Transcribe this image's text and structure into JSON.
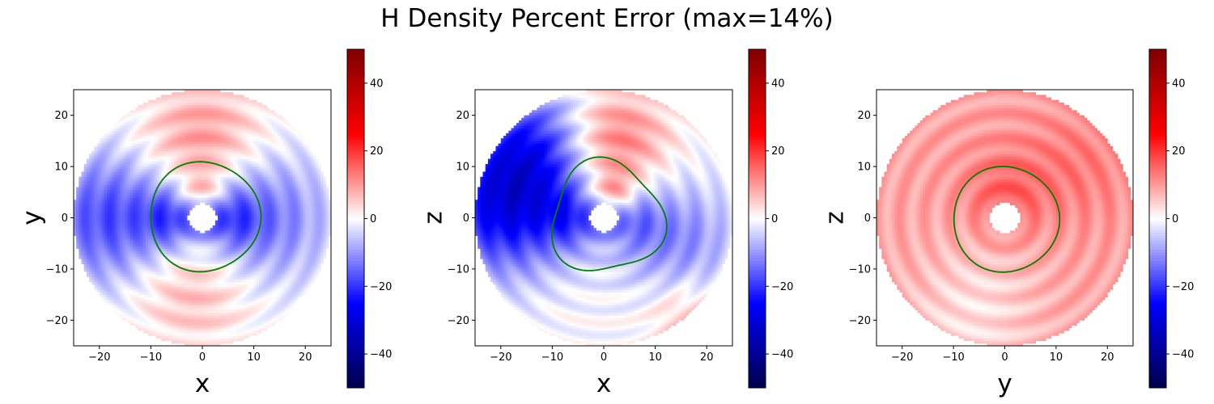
{
  "title": "H Density Percent Error (max=14%)",
  "chart_data": [
    {
      "type": "heatmap",
      "xlabel": "x",
      "ylabel": "y",
      "xlim": [
        -25,
        25
      ],
      "ylim": [
        -25,
        25
      ],
      "xticks": [
        "−20",
        "−10",
        "0",
        "10",
        "20"
      ],
      "yticks": [
        "−20",
        "−10",
        "0",
        "10",
        "20"
      ],
      "colorbar": {
        "range": [
          -50,
          50
        ],
        "ticks": [
          "−40",
          "−20",
          "0",
          "20",
          "40"
        ],
        "colormap": "seismic"
      },
      "field": {
        "outer_radius": 25,
        "inner_radius": 2.8,
        "lobes": [
          {
            "x": 0,
            "y": 15,
            "value": 11,
            "r": 8
          },
          {
            "x": -2,
            "y": -13,
            "value": 8,
            "r": 8
          },
          {
            "x": -18,
            "y": 0,
            "value": -18,
            "r": 9
          },
          {
            "x": 12,
            "y": 0,
            "value": -14,
            "r": 9
          },
          {
            "x": -6,
            "y": 0,
            "value": -14,
            "r": 4
          },
          {
            "x": 5,
            "y": 0,
            "value": -12,
            "r": 4
          },
          {
            "x": 0,
            "y": 5,
            "value": 10,
            "r": 3
          }
        ],
        "base": 0
      },
      "contour": {
        "color": "#008000",
        "r0": 10.7,
        "amp": 0.3,
        "phase": 0,
        "dx": 0.4,
        "dy": 0.2
      }
    },
    {
      "type": "heatmap",
      "xlabel": "x",
      "ylabel": "z",
      "xlim": [
        -25,
        25
      ],
      "ylim": [
        -25,
        25
      ],
      "xticks": [
        "−20",
        "−10",
        "0",
        "10",
        "20"
      ],
      "yticks": [
        "−20",
        "−10",
        "0",
        "10",
        "20"
      ],
      "colorbar": {
        "range": [
          -50,
          50
        ],
        "ticks": [
          "−40",
          "−20",
          "0",
          "20",
          "40"
        ],
        "colormap": "seismic"
      },
      "field": {
        "outer_radius": 25,
        "inner_radius": 2.8,
        "lobes": [
          {
            "x": 2,
            "y": 15,
            "value": 14,
            "r": 7
          },
          {
            "x": -19,
            "y": 2,
            "value": -26,
            "r": 9
          },
          {
            "x": -14,
            "y": 14,
            "value": -18,
            "r": 8
          },
          {
            "x": 14,
            "y": -4,
            "value": -12,
            "r": 8
          },
          {
            "x": -6,
            "y": 0,
            "value": -12,
            "r": 4
          },
          {
            "x": 5,
            "y": 0,
            "value": -10,
            "r": 4
          },
          {
            "x": 2,
            "y": 5,
            "value": 12,
            "r": 3
          },
          {
            "x": 16,
            "y": -19,
            "value": 7,
            "r": 5
          }
        ],
        "base": 0
      },
      "contour": {
        "color": "#008000",
        "r0": 10.8,
        "amp": 1.2,
        "phase": 0.9,
        "dx": 0.5,
        "dy": 0
      }
    },
    {
      "type": "heatmap",
      "xlabel": "y",
      "ylabel": "z",
      "xlim": [
        -25,
        25
      ],
      "ylim": [
        -25,
        25
      ],
      "xticks": [
        "−20",
        "−10",
        "0",
        "10",
        "20"
      ],
      "yticks": [
        "−20",
        "−10",
        "0",
        "10",
        "20"
      ],
      "colorbar": {
        "range": [
          -50,
          50
        ],
        "ticks": [
          "−40",
          "−20",
          "0",
          "20",
          "40"
        ],
        "colormap": "seismic"
      },
      "field": {
        "outer_radius": 25,
        "inner_radius": 3.0,
        "lobes": [
          {
            "x": 0,
            "y": 5,
            "value": 6,
            "r": 6
          },
          {
            "x": -6,
            "y": -18,
            "value": -6,
            "r": 9
          },
          {
            "x": 14,
            "y": 10,
            "value": 4,
            "r": 8
          }
        ],
        "base": 9
      },
      "contour": {
        "color": "#008000",
        "r0": 10.3,
        "amp": 0.2,
        "phase": 0,
        "dx": 0.2,
        "dy": -0.3
      }
    }
  ]
}
